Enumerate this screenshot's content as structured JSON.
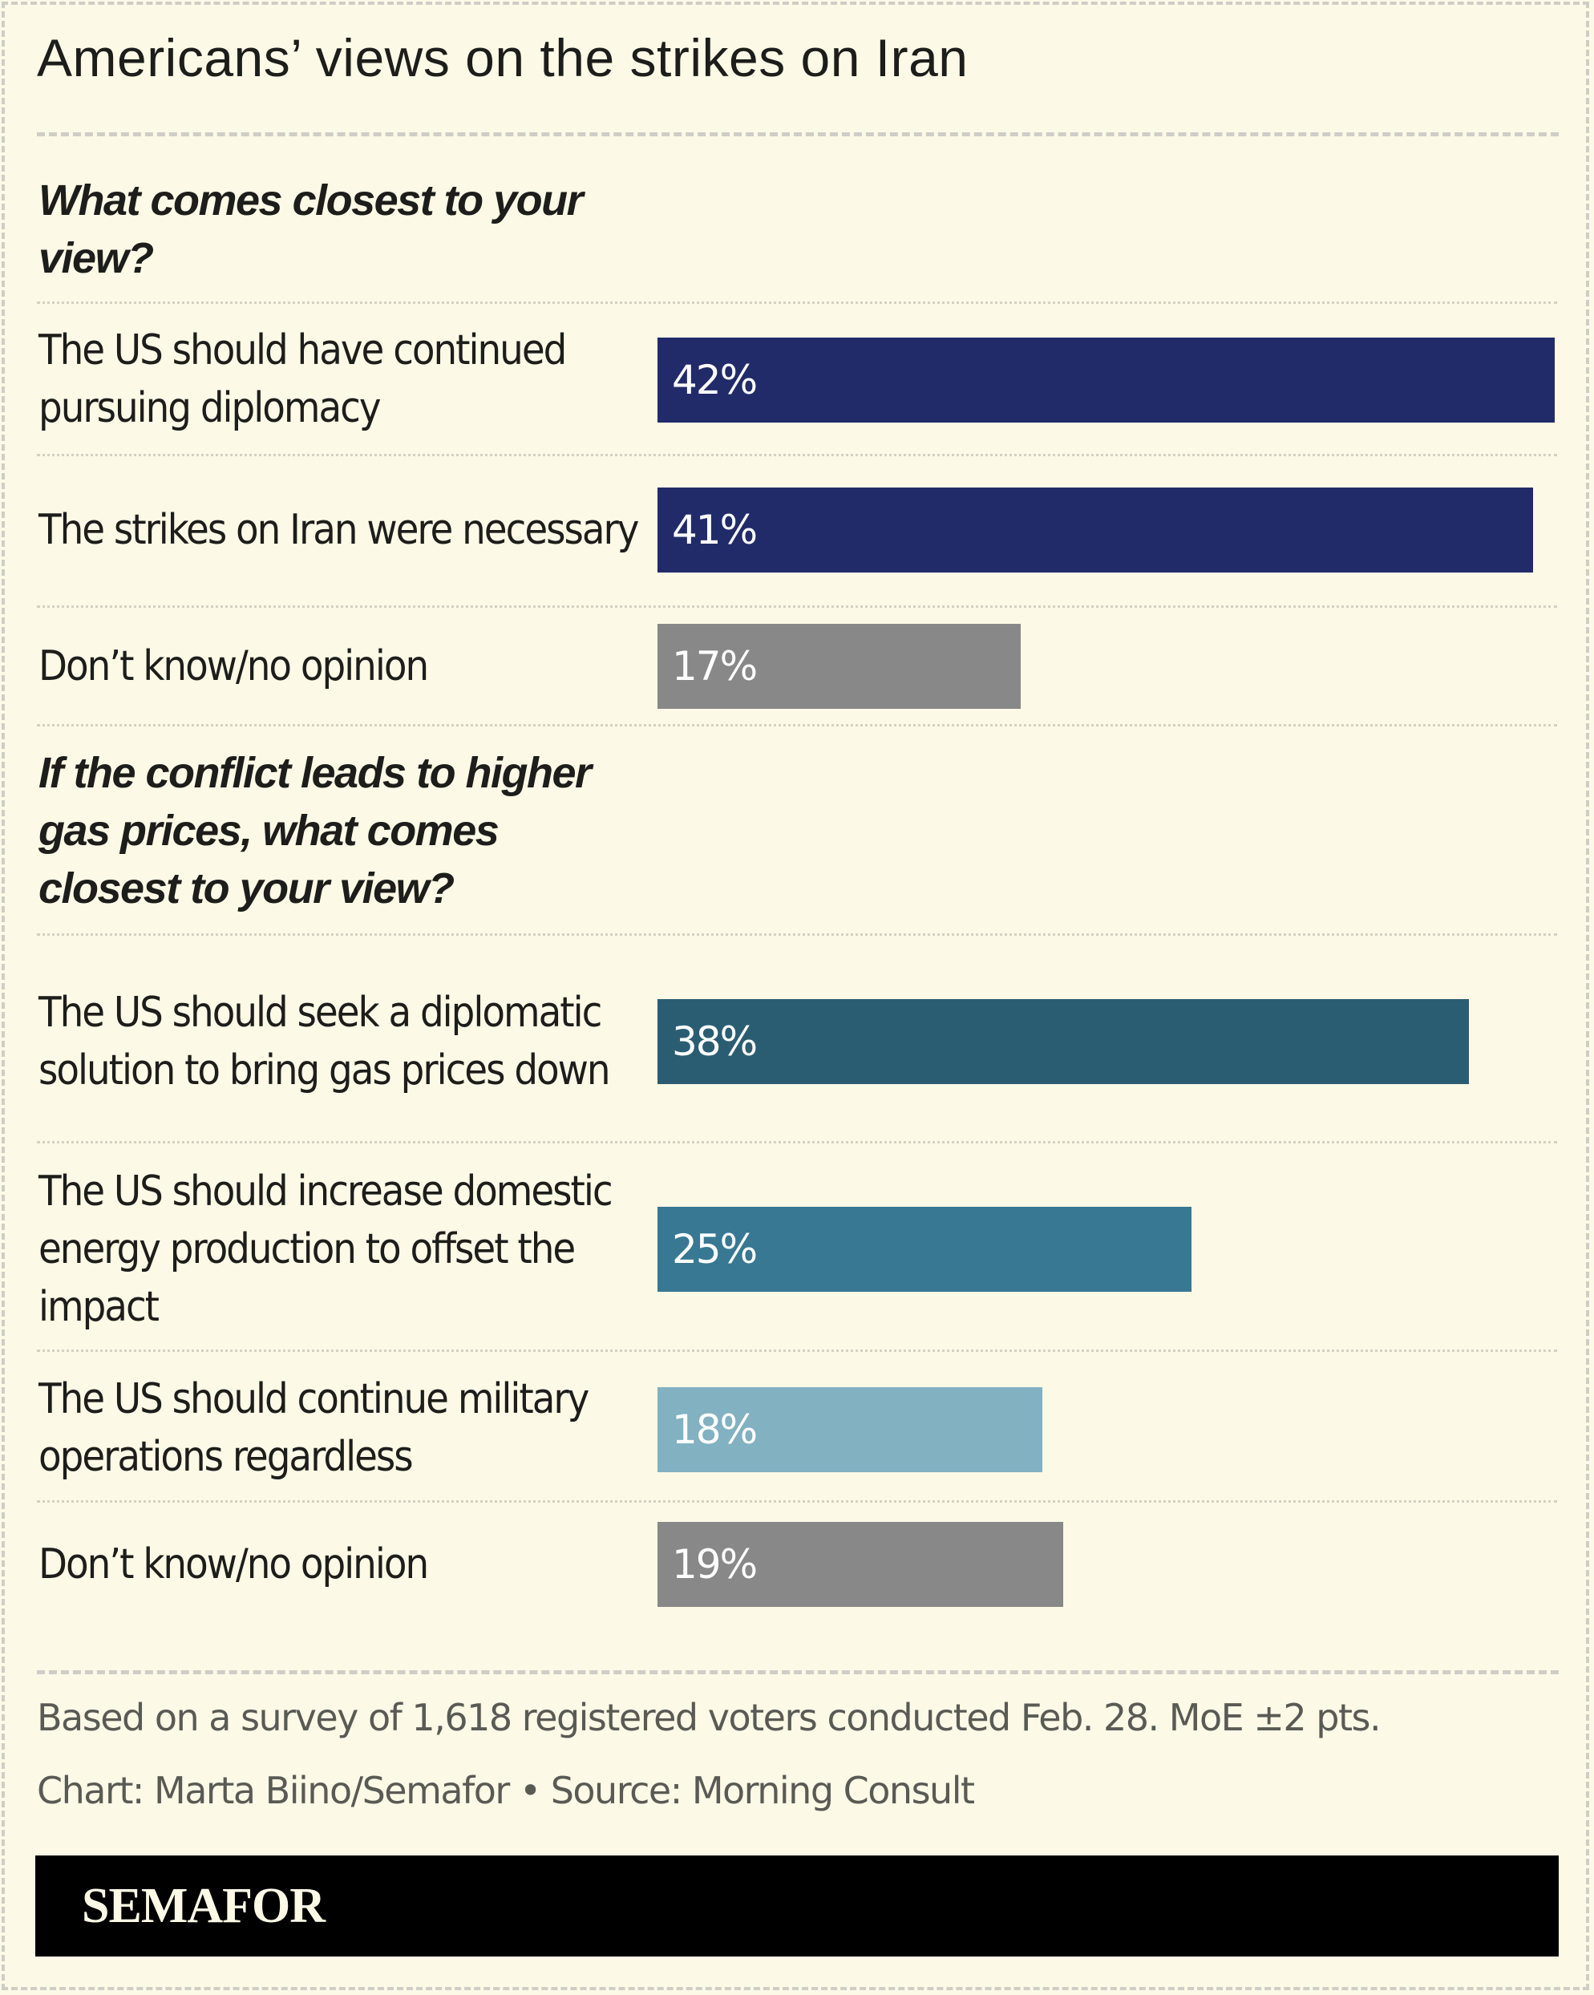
{
  "chart_data": [
    {
      "type": "bar",
      "orientation": "horizontal",
      "title": "Americans’ views on the strikes on Iran",
      "question": "What comes closest to your view?",
      "categories": [
        "The US should have continued pursuing diplomacy",
        "The strikes on Iran were necessary",
        "Don’t know/no opinion"
      ],
      "values": [
        42,
        41,
        17
      ],
      "value_labels": [
        "42%",
        "41%",
        "17%"
      ],
      "colors": [
        "#222b69",
        "#222b69",
        "#888888"
      ],
      "unit": "%",
      "xlim": [
        0,
        42
      ],
      "grid": false,
      "legend": "none"
    },
    {
      "type": "bar",
      "orientation": "horizontal",
      "question": "If the conflict leads to higher gas prices, what comes closest to your view?",
      "categories": [
        "The US should seek a diplomatic solution to bring gas prices down",
        "The US should increase domestic energy production to offset the impact",
        "The US should continue military operations regardless",
        "Don’t know/no opinion"
      ],
      "values": [
        38,
        25,
        18,
        19
      ],
      "value_labels": [
        "38%",
        "25%",
        "18%",
        "19%"
      ],
      "colors": [
        "#2b5d72",
        "#387893",
        "#82b1c1",
        "#888888"
      ],
      "unit": "%",
      "xlim": [
        0,
        42
      ],
      "grid": false,
      "legend": "none"
    }
  ],
  "header": {
    "title": "Americans’ views on the strikes on Iran"
  },
  "sections": [
    {
      "question": "What comes closest to your view?",
      "rows": [
        {
          "label": "The US should have continued pursuing diplomacy",
          "value": 42,
          "value_label": "42%",
          "color": "#222b69"
        },
        {
          "label": "The strikes on Iran were necessary",
          "value": 41,
          "value_label": "41%",
          "color": "#222b69"
        },
        {
          "label": "Don’t know/no opinion",
          "value": 17,
          "value_label": "17%",
          "color": "#888888"
        }
      ]
    },
    {
      "question": "If the conflict leads to higher gas prices, what comes closest to your view?",
      "rows": [
        {
          "label": "The US should seek a diplomatic solution to bring gas prices down",
          "value": 38,
          "value_label": "38%",
          "color": "#2b5d72"
        },
        {
          "label": "The US should increase domestic energy production to offset the impact",
          "value": 25,
          "value_label": "25%",
          "color": "#387893"
        },
        {
          "label": "The US should continue military operations regardless",
          "value": 18,
          "value_label": "18%",
          "color": "#82b1c1"
        },
        {
          "label": "Don’t know/no opinion",
          "value": 19,
          "value_label": "19%",
          "color": "#888888"
        }
      ]
    }
  ],
  "footer": {
    "note": "Based on a survey of 1,618 registered voters conducted Feb. 28. MoE ±2 pts.",
    "source": "Chart: Marta Biino/Semafor • Source: Morning Consult",
    "logo": "SEMAFOR"
  },
  "scale_max": 42
}
